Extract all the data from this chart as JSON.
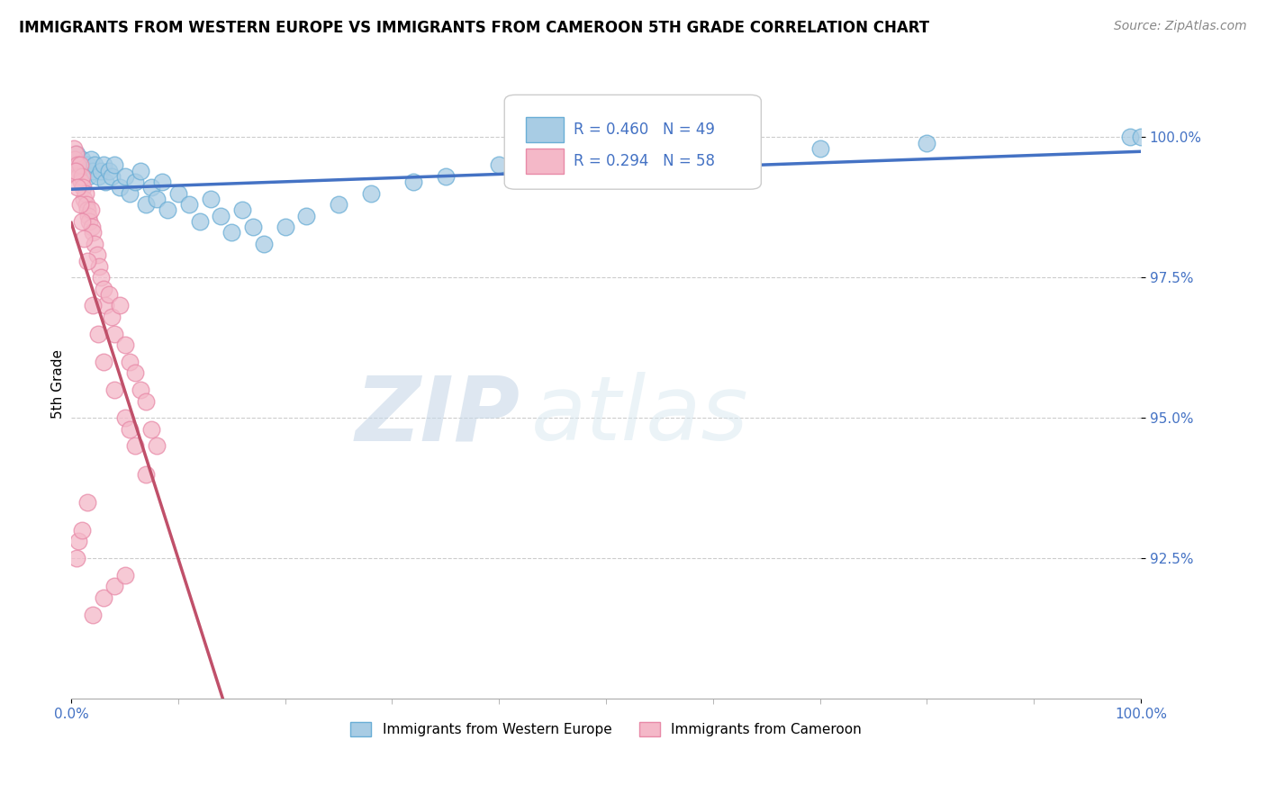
{
  "title": "IMMIGRANTS FROM WESTERN EUROPE VS IMMIGRANTS FROM CAMEROON 5TH GRADE CORRELATION CHART",
  "source": "Source: ZipAtlas.com",
  "ylabel": "5th Grade",
  "ytick_values": [
    92.5,
    95.0,
    97.5,
    100.0
  ],
  "legend_label_blue": "Immigrants from Western Europe",
  "legend_label_pink": "Immigrants from Cameroon",
  "R_blue": 0.46,
  "N_blue": 49,
  "R_pink": 0.294,
  "N_pink": 58,
  "blue_color": "#a8cce4",
  "pink_color": "#f4b8c8",
  "blue_edge_color": "#6aaed6",
  "pink_edge_color": "#e88aa8",
  "blue_line_color": "#4472c4",
  "pink_line_color": "#c0506a",
  "watermark_zip": "ZIP",
  "watermark_atlas": "atlas",
  "blue_dots_x": [
    0.3,
    0.5,
    0.8,
    1.0,
    1.2,
    1.5,
    1.6,
    1.8,
    2.0,
    2.2,
    2.5,
    2.8,
    3.0,
    3.2,
    3.5,
    3.8,
    4.0,
    4.5,
    5.0,
    5.5,
    6.0,
    6.5,
    7.0,
    7.5,
    8.0,
    8.5,
    9.0,
    10.0,
    11.0,
    12.0,
    13.0,
    14.0,
    15.0,
    16.0,
    17.0,
    18.0,
    20.0,
    22.0,
    25.0,
    28.0,
    32.0,
    35.0,
    40.0,
    50.0,
    60.0,
    70.0,
    80.0,
    99.0,
    100.0
  ],
  "blue_dots_y": [
    99.6,
    99.7,
    99.5,
    99.6,
    99.4,
    99.5,
    99.3,
    99.6,
    99.4,
    99.5,
    99.3,
    99.4,
    99.5,
    99.2,
    99.4,
    99.3,
    99.5,
    99.1,
    99.3,
    99.0,
    99.2,
    99.4,
    98.8,
    99.1,
    98.9,
    99.2,
    98.7,
    99.0,
    98.8,
    98.5,
    98.9,
    98.6,
    98.3,
    98.7,
    98.4,
    98.1,
    98.4,
    98.6,
    98.8,
    99.0,
    99.2,
    99.3,
    99.5,
    99.6,
    99.7,
    99.8,
    99.9,
    100.0,
    100.0
  ],
  "pink_dots_x": [
    0.2,
    0.3,
    0.4,
    0.5,
    0.6,
    0.7,
    0.8,
    0.9,
    1.0,
    1.1,
    1.2,
    1.3,
    1.4,
    1.5,
    1.6,
    1.7,
    1.8,
    1.9,
    2.0,
    2.2,
    2.4,
    2.6,
    2.8,
    3.0,
    3.2,
    3.5,
    3.8,
    4.0,
    4.5,
    5.0,
    5.5,
    6.0,
    6.5,
    7.0,
    7.5,
    8.0,
    0.4,
    0.6,
    0.8,
    1.0,
    1.2,
    1.5,
    2.0,
    2.5,
    3.0,
    4.0,
    5.0,
    5.5,
    6.0,
    7.0,
    0.5,
    0.7,
    1.0,
    1.5,
    2.0,
    3.0,
    4.0,
    5.0
  ],
  "pink_dots_y": [
    99.8,
    99.6,
    99.7,
    99.4,
    99.5,
    99.3,
    99.5,
    99.2,
    99.3,
    99.1,
    98.9,
    99.0,
    98.8,
    98.7,
    98.6,
    98.5,
    98.7,
    98.4,
    98.3,
    98.1,
    97.9,
    97.7,
    97.5,
    97.3,
    97.0,
    97.2,
    96.8,
    96.5,
    97.0,
    96.3,
    96.0,
    95.8,
    95.5,
    95.3,
    94.8,
    94.5,
    99.4,
    99.1,
    98.8,
    98.5,
    98.2,
    97.8,
    97.0,
    96.5,
    96.0,
    95.5,
    95.0,
    94.8,
    94.5,
    94.0,
    92.5,
    92.8,
    93.0,
    93.5,
    91.5,
    91.8,
    92.0,
    92.2
  ]
}
